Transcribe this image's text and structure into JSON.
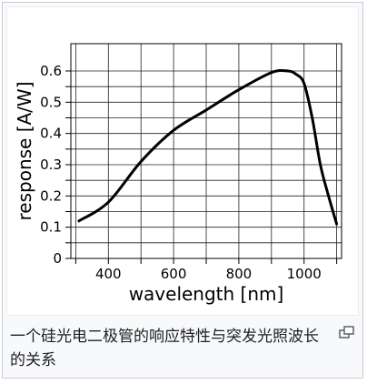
{
  "chart_data": {
    "type": "line",
    "xlabel": "wavelength [nm]",
    "ylabel": "response [A/W]",
    "xlim": [
      285,
      1115
    ],
    "ylim": [
      0,
      0.6
    ],
    "x_ticks": [
      400,
      600,
      800,
      1000
    ],
    "y_ticks": [
      0,
      0.1,
      0.2,
      0.3,
      0.4,
      0.5,
      0.6
    ],
    "y_tick_labels": [
      "0",
      "0.1",
      "0.2",
      "0.3",
      "0.4",
      "0.5",
      "0.6"
    ],
    "grid": true,
    "series": [
      {
        "color": "#000000",
        "x": [
          310,
          400,
          500,
          600,
          700,
          800,
          900,
          950,
          975,
          1000,
          1025,
          1050,
          1075,
          1100
        ],
        "y": [
          0.12,
          0.18,
          0.31,
          0.41,
          0.475,
          0.54,
          0.595,
          0.6,
          0.59,
          0.56,
          0.45,
          0.3,
          0.2,
          0.11
        ]
      }
    ]
  },
  "caption": {
    "text": "一个硅光电二极管的响应特性与突发光照波长的关系"
  },
  "controls": {
    "enlarge_icon": "enlarge-icon"
  }
}
